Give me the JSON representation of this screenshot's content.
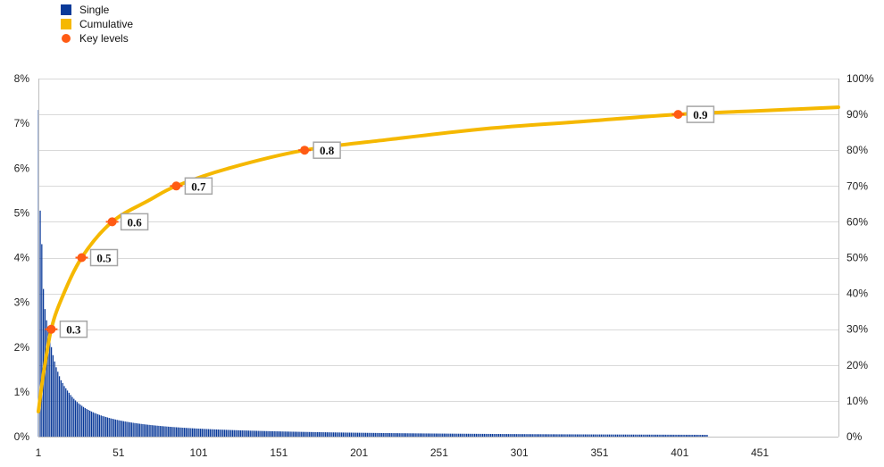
{
  "chart_data": {
    "type": "bar+line",
    "legend": {
      "placement": "top-left",
      "items": [
        {
          "name": "Single",
          "color": "#0a3a99",
          "shape": "square"
        },
        {
          "name": "Cumulative",
          "color": "#f5b800",
          "shape": "square"
        },
        {
          "name": "Key levels",
          "color": "#ff5b14",
          "shape": "circle"
        }
      ]
    },
    "x_axis": {
      "ticks": [
        "1",
        "51",
        "101",
        "151",
        "201",
        "251",
        "301",
        "351",
        "401",
        "451"
      ],
      "range": [
        1,
        500
      ]
    },
    "y_left": {
      "ticks": [
        "0%",
        "1%",
        "2%",
        "3%",
        "4%",
        "5%",
        "6%",
        "7%",
        "8%"
      ],
      "range": [
        0,
        8
      ]
    },
    "y_right": {
      "ticks": [
        "0%",
        "10%",
        "20%",
        "30%",
        "40%",
        "50%",
        "60%",
        "70%",
        "80%",
        "90%",
        "100%"
      ],
      "range": [
        0,
        100
      ]
    },
    "grid": true,
    "single": {
      "name": "Single",
      "color": "#0a3a99",
      "count": 418,
      "values_head": [
        7.3,
        5.05,
        4.3,
        3.3,
        2.85,
        2.6,
        2.4,
        2.2,
        2.0,
        1.82,
        1.68,
        1.55,
        1.45,
        1.35,
        1.26,
        1.2,
        1.13,
        1.08,
        1.03,
        0.98
      ]
    },
    "cumulative": {
      "name": "Cumulative",
      "color": "#f5b800",
      "points": [
        {
          "x": 1,
          "y": 7
        },
        {
          "x": 3,
          "y": 14
        },
        {
          "x": 5,
          "y": 20
        },
        {
          "x": 9,
          "y": 30
        },
        {
          "x": 15,
          "y": 38
        },
        {
          "x": 28,
          "y": 50
        },
        {
          "x": 47,
          "y": 60
        },
        {
          "x": 70,
          "y": 66
        },
        {
          "x": 87,
          "y": 70
        },
        {
          "x": 120,
          "y": 75
        },
        {
          "x": 167,
          "y": 80
        },
        {
          "x": 220,
          "y": 83
        },
        {
          "x": 280,
          "y": 86
        },
        {
          "x": 340,
          "y": 88
        },
        {
          "x": 400,
          "y": 90
        },
        {
          "x": 450,
          "y": 91
        },
        {
          "x": 500,
          "y": 92
        }
      ]
    },
    "key_levels": {
      "name": "Key levels",
      "color": "#ff5b14",
      "points": [
        {
          "x": 9,
          "y": 30,
          "label": "0.3"
        },
        {
          "x": 28,
          "y": 50,
          "label": "0.5"
        },
        {
          "x": 47,
          "y": 60,
          "label": "0.6"
        },
        {
          "x": 87,
          "y": 70,
          "label": "0.7"
        },
        {
          "x": 167,
          "y": 80,
          "label": "0.8"
        },
        {
          "x": 400,
          "y": 90,
          "label": "0.9"
        }
      ]
    }
  }
}
